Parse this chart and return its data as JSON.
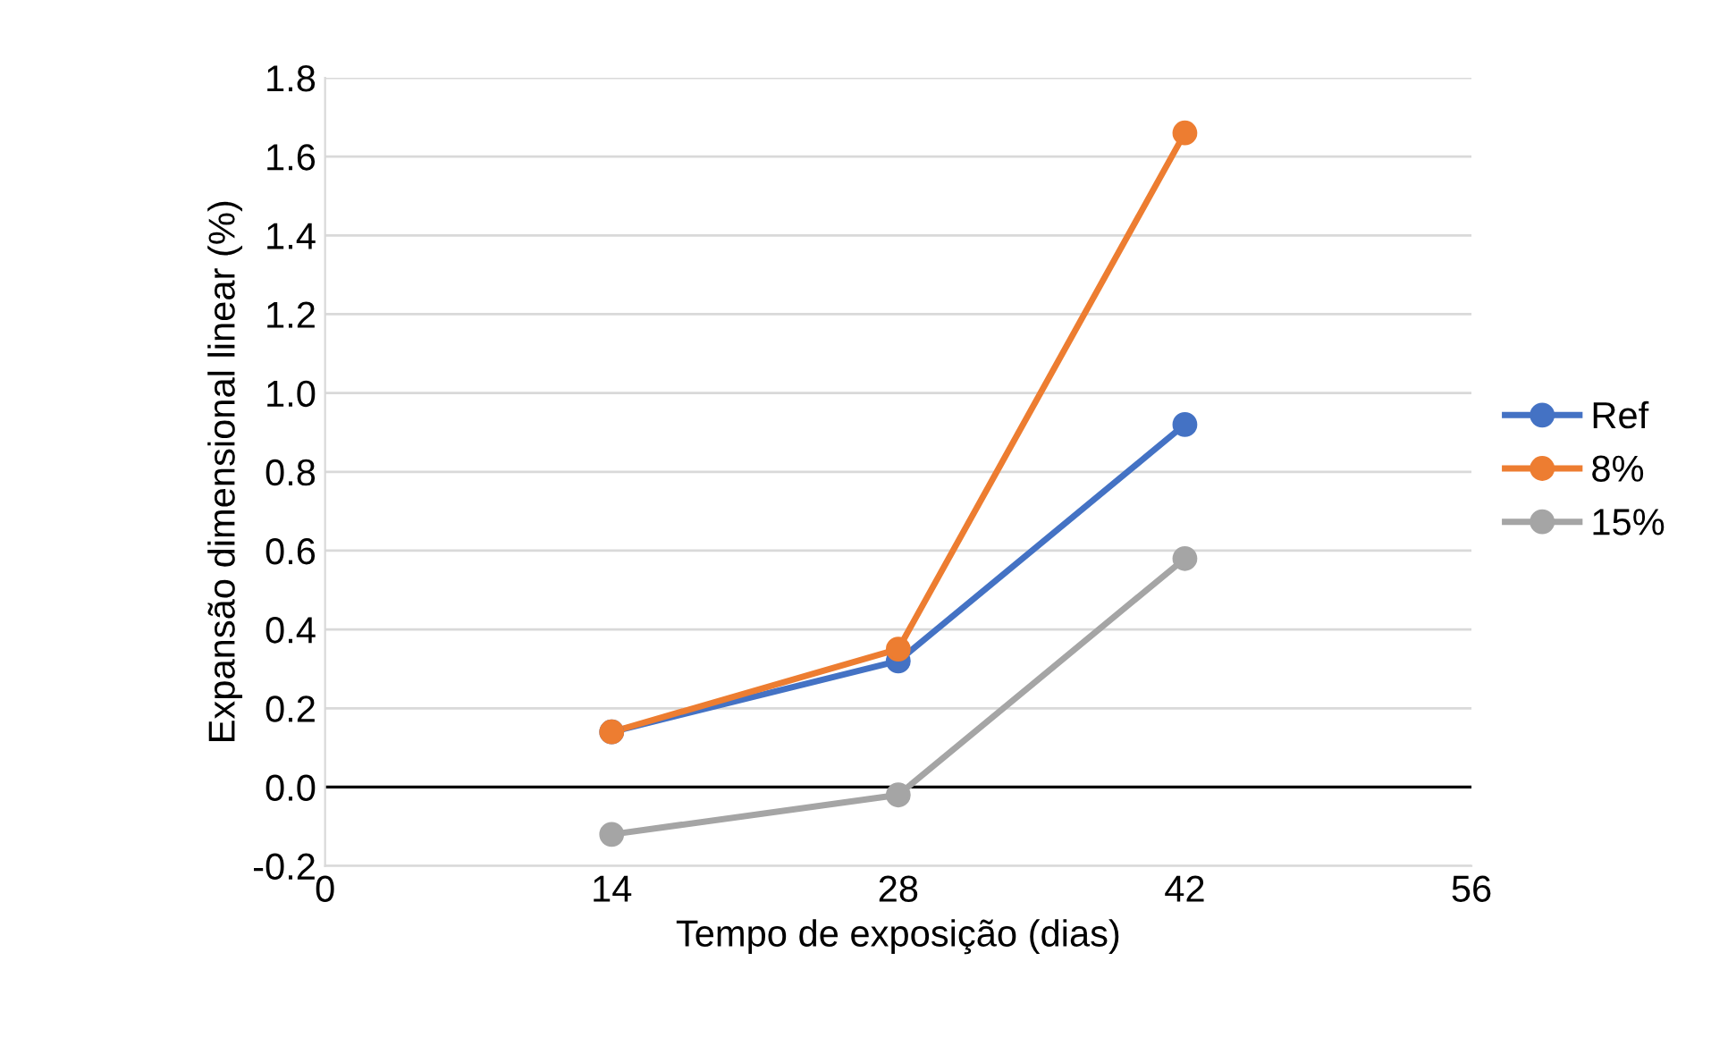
{
  "chart_data": {
    "type": "line",
    "xlabel": "Tempo de exposição (dias)",
    "ylabel": "Expansão dimensional linear (%)",
    "x": [
      14,
      28,
      42
    ],
    "series": [
      {
        "name": "Ref",
        "color": "#4472c4",
        "values": [
          0.14,
          0.32,
          0.92
        ]
      },
      {
        "name": "8%",
        "color": "#ed7d31",
        "values": [
          0.14,
          0.35,
          1.66
        ]
      },
      {
        "name": "15%",
        "color": "#a5a5a5",
        "values": [
          -0.12,
          -0.02,
          0.58
        ]
      }
    ],
    "xlim": [
      0,
      56
    ],
    "xticks": [
      0,
      14,
      28,
      42,
      56
    ],
    "ylim": [
      -0.2,
      1.8
    ],
    "yticks": [
      {
        "value": -0.2,
        "label": "-0.2"
      },
      {
        "value": 0,
        "label": "0.0"
      },
      {
        "value": 0.2,
        "label": "0.2"
      },
      {
        "value": 0.4,
        "label": "0.4"
      },
      {
        "value": 0.6,
        "label": "0.6"
      },
      {
        "value": 0.8,
        "label": "0.8"
      },
      {
        "value": 1.0,
        "label": "1.0"
      },
      {
        "value": 1.2,
        "label": "1.2"
      },
      {
        "value": 1.4,
        "label": "1.4"
      },
      {
        "value": 1.6,
        "label": "1.6"
      },
      {
        "value": 1.8,
        "label": "1.8"
      }
    ],
    "grid": "y",
    "legend": "right",
    "marker": "circle",
    "line_style": "solid",
    "ref_lines": [
      {
        "axis": "y",
        "value": 0,
        "color": "#000000"
      }
    ]
  }
}
